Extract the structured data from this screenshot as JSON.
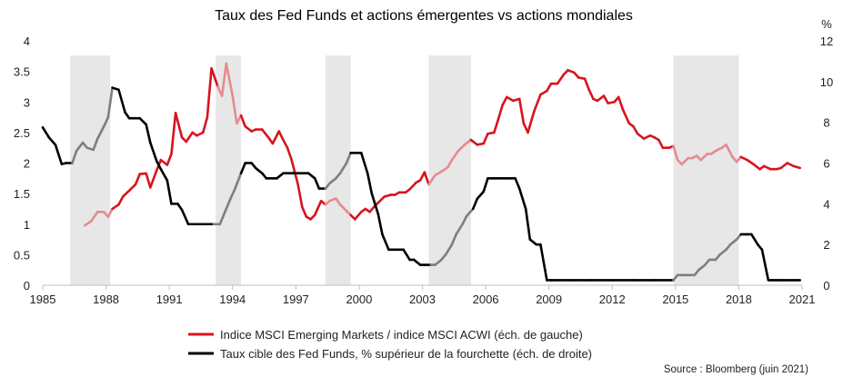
{
  "chart_data": {
    "type": "line",
    "title": "Taux des Fed Funds et actions émergentes vs actions mondiales",
    "source": "Source : Bloomberg (juin 2021)",
    "x_axis": {
      "range": [
        1985,
        2021
      ],
      "ticks": [
        1985,
        1988,
        1991,
        1994,
        1997,
        2000,
        2003,
        2006,
        2009,
        2012,
        2015,
        2018,
        2021
      ]
    },
    "y_left": {
      "label": "",
      "range": [
        0,
        4
      ],
      "ticks": [
        "0",
        "0.5",
        "1",
        "1.5",
        "2",
        "2.5",
        "3",
        "3.5",
        "4"
      ]
    },
    "y_right": {
      "label": "%",
      "range": [
        0,
        12
      ],
      "ticks": [
        "0",
        "2",
        "4",
        "6",
        "8",
        "10",
        "12"
      ]
    },
    "recession_bands": [
      [
        1986.3,
        1988.2
      ],
      [
        1993.2,
        1994.4
      ],
      [
        1998.4,
        1999.6
      ],
      [
        2003.3,
        2005.3
      ],
      [
        2014.9,
        2018.0
      ]
    ],
    "series": [
      {
        "name": "Indice MSCI Emerging Markets / indice MSCI ACWI (éch. de gauche)",
        "axis": "left",
        "color": "#d7141e",
        "highlight_color": "#e58b91",
        "points": [
          [
            1987.0,
            0.98
          ],
          [
            1987.3,
            1.05
          ],
          [
            1987.6,
            1.2
          ],
          [
            1987.9,
            1.2
          ],
          [
            1988.1,
            1.12
          ],
          [
            1988.3,
            1.25
          ],
          [
            1988.6,
            1.32
          ],
          [
            1988.8,
            1.45
          ],
          [
            1989.1,
            1.55
          ],
          [
            1989.4,
            1.65
          ],
          [
            1989.6,
            1.82
          ],
          [
            1989.9,
            1.83
          ],
          [
            1990.1,
            1.6
          ],
          [
            1990.4,
            1.88
          ],
          [
            1990.6,
            2.05
          ],
          [
            1990.9,
            1.97
          ],
          [
            1991.1,
            2.15
          ],
          [
            1991.3,
            2.82
          ],
          [
            1991.6,
            2.42
          ],
          [
            1991.8,
            2.35
          ],
          [
            1992.1,
            2.5
          ],
          [
            1992.3,
            2.45
          ],
          [
            1992.6,
            2.5
          ],
          [
            1992.8,
            2.75
          ],
          [
            1993.0,
            3.55
          ],
          [
            1993.3,
            3.25
          ],
          [
            1993.5,
            3.1
          ],
          [
            1993.7,
            3.63
          ],
          [
            1994.0,
            3.1
          ],
          [
            1994.2,
            2.65
          ],
          [
            1994.4,
            2.78
          ],
          [
            1994.6,
            2.6
          ],
          [
            1994.9,
            2.52
          ],
          [
            1995.1,
            2.55
          ],
          [
            1995.4,
            2.55
          ],
          [
            1995.7,
            2.42
          ],
          [
            1995.9,
            2.32
          ],
          [
            1996.2,
            2.52
          ],
          [
            1996.4,
            2.38
          ],
          [
            1996.6,
            2.25
          ],
          [
            1996.8,
            2.05
          ],
          [
            1997.1,
            1.65
          ],
          [
            1997.3,
            1.28
          ],
          [
            1997.5,
            1.12
          ],
          [
            1997.7,
            1.08
          ],
          [
            1997.9,
            1.15
          ],
          [
            1998.2,
            1.38
          ],
          [
            1998.4,
            1.32
          ],
          [
            1998.6,
            1.38
          ],
          [
            1998.9,
            1.42
          ],
          [
            1999.1,
            1.32
          ],
          [
            1999.3,
            1.25
          ],
          [
            1999.6,
            1.15
          ],
          [
            1999.8,
            1.08
          ],
          [
            2000.1,
            1.2
          ],
          [
            2000.3,
            1.25
          ],
          [
            2000.5,
            1.2
          ],
          [
            2000.7,
            1.28
          ],
          [
            2000.9,
            1.35
          ],
          [
            2001.2,
            1.45
          ],
          [
            2001.5,
            1.48
          ],
          [
            2001.7,
            1.48
          ],
          [
            2001.9,
            1.52
          ],
          [
            2002.2,
            1.52
          ],
          [
            2002.4,
            1.57
          ],
          [
            2002.7,
            1.68
          ],
          [
            2002.9,
            1.72
          ],
          [
            2003.1,
            1.85
          ],
          [
            2003.3,
            1.65
          ],
          [
            2003.6,
            1.8
          ],
          [
            2003.9,
            1.86
          ],
          [
            2004.2,
            1.93
          ],
          [
            2004.4,
            2.05
          ],
          [
            2004.7,
            2.2
          ],
          [
            2005.0,
            2.3
          ],
          [
            2005.3,
            2.38
          ],
          [
            2005.6,
            2.3
          ],
          [
            2005.9,
            2.32
          ],
          [
            2006.1,
            2.48
          ],
          [
            2006.4,
            2.5
          ],
          [
            2006.6,
            2.72
          ],
          [
            2006.8,
            2.95
          ],
          [
            2007.0,
            3.08
          ],
          [
            2007.3,
            3.02
          ],
          [
            2007.6,
            3.05
          ],
          [
            2007.8,
            2.65
          ],
          [
            2008.0,
            2.5
          ],
          [
            2008.3,
            2.85
          ],
          [
            2008.6,
            3.12
          ],
          [
            2008.9,
            3.18
          ],
          [
            2009.1,
            3.3
          ],
          [
            2009.4,
            3.3
          ],
          [
            2009.7,
            3.45
          ],
          [
            2009.9,
            3.52
          ],
          [
            2010.2,
            3.48
          ],
          [
            2010.4,
            3.4
          ],
          [
            2010.7,
            3.38
          ],
          [
            2010.9,
            3.2
          ],
          [
            2011.1,
            3.05
          ],
          [
            2011.3,
            3.02
          ],
          [
            2011.6,
            3.1
          ],
          [
            2011.8,
            2.98
          ],
          [
            2012.1,
            3.0
          ],
          [
            2012.3,
            3.08
          ],
          [
            2012.5,
            2.88
          ],
          [
            2012.8,
            2.65
          ],
          [
            2013.0,
            2.6
          ],
          [
            2013.2,
            2.48
          ],
          [
            2013.5,
            2.4
          ],
          [
            2013.8,
            2.45
          ],
          [
            2014.0,
            2.42
          ],
          [
            2014.2,
            2.38
          ],
          [
            2014.4,
            2.25
          ],
          [
            2014.7,
            2.25
          ],
          [
            2014.9,
            2.28
          ],
          [
            2015.1,
            2.05
          ],
          [
            2015.3,
            1.98
          ],
          [
            2015.6,
            2.08
          ],
          [
            2015.8,
            2.08
          ],
          [
            2016.0,
            2.12
          ],
          [
            2016.2,
            2.05
          ],
          [
            2016.5,
            2.15
          ],
          [
            2016.7,
            2.15
          ],
          [
            2016.9,
            2.2
          ],
          [
            2017.2,
            2.25
          ],
          [
            2017.4,
            2.3
          ],
          [
            2017.7,
            2.1
          ],
          [
            2017.9,
            2.02
          ],
          [
            2018.1,
            2.1
          ],
          [
            2018.4,
            2.05
          ],
          [
            2018.7,
            1.98
          ],
          [
            2019.0,
            1.9
          ],
          [
            2019.2,
            1.95
          ],
          [
            2019.5,
            1.9
          ],
          [
            2019.8,
            1.9
          ],
          [
            2020.0,
            1.92
          ],
          [
            2020.3,
            2.0
          ],
          [
            2020.6,
            1.95
          ],
          [
            2020.9,
            1.92
          ]
        ]
      },
      {
        "name": "Taux cible des Fed Funds, % supérieur de la fourchette (éch. de droite)",
        "axis": "right",
        "color": "#000000",
        "highlight_color": "#7f7f7f",
        "points": [
          [
            1985.0,
            7.75
          ],
          [
            1985.3,
            7.25
          ],
          [
            1985.6,
            6.9
          ],
          [
            1985.9,
            5.95
          ],
          [
            1986.1,
            6.0
          ],
          [
            1986.4,
            6.0
          ],
          [
            1986.6,
            6.6
          ],
          [
            1986.9,
            7.0
          ],
          [
            1987.1,
            6.75
          ],
          [
            1987.4,
            6.65
          ],
          [
            1987.6,
            7.2
          ],
          [
            1987.9,
            7.8
          ],
          [
            1988.1,
            8.25
          ],
          [
            1988.3,
            9.7
          ],
          [
            1988.6,
            9.6
          ],
          [
            1988.9,
            8.5
          ],
          [
            1989.1,
            8.2
          ],
          [
            1989.4,
            8.2
          ],
          [
            1989.6,
            8.2
          ],
          [
            1989.9,
            7.9
          ],
          [
            1990.1,
            7.0
          ],
          [
            1990.4,
            6.1
          ],
          [
            1990.6,
            5.7
          ],
          [
            1990.9,
            5.15
          ],
          [
            1991.1,
            4.0
          ],
          [
            1991.4,
            4.0
          ],
          [
            1991.6,
            3.7
          ],
          [
            1991.9,
            3.0
          ],
          [
            1992.1,
            3.0
          ],
          [
            1992.4,
            3.0
          ],
          [
            1992.6,
            3.0
          ],
          [
            1992.9,
            3.0
          ],
          [
            1993.1,
            3.0
          ],
          [
            1993.4,
            3.0
          ],
          [
            1993.6,
            3.5
          ],
          [
            1993.9,
            4.25
          ],
          [
            1994.1,
            4.7
          ],
          [
            1994.4,
            5.5
          ],
          [
            1994.6,
            6.0
          ],
          [
            1994.9,
            6.0
          ],
          [
            1995.1,
            5.75
          ],
          [
            1995.4,
            5.5
          ],
          [
            1995.6,
            5.25
          ],
          [
            1995.9,
            5.25
          ],
          [
            1996.1,
            5.25
          ],
          [
            1996.4,
            5.5
          ],
          [
            1996.6,
            5.5
          ],
          [
            1996.9,
            5.5
          ],
          [
            1997.1,
            5.5
          ],
          [
            1997.4,
            5.5
          ],
          [
            1997.6,
            5.5
          ],
          [
            1997.9,
            5.25
          ],
          [
            1998.1,
            4.75
          ],
          [
            1998.4,
            4.75
          ],
          [
            1998.6,
            5.0
          ],
          [
            1998.9,
            5.25
          ],
          [
            1999.1,
            5.5
          ],
          [
            1999.4,
            6.0
          ],
          [
            1999.6,
            6.5
          ],
          [
            1999.9,
            6.5
          ],
          [
            2000.1,
            6.5
          ],
          [
            2000.4,
            5.5
          ],
          [
            2000.6,
            4.5
          ],
          [
            2000.9,
            3.5
          ],
          [
            2001.1,
            2.5
          ],
          [
            2001.4,
            1.75
          ],
          [
            2001.6,
            1.75
          ],
          [
            2001.9,
            1.75
          ],
          [
            2002.1,
            1.75
          ],
          [
            2002.4,
            1.25
          ],
          [
            2002.6,
            1.25
          ],
          [
            2002.9,
            1.0
          ],
          [
            2003.1,
            1.0
          ],
          [
            2003.4,
            1.0
          ],
          [
            2003.6,
            1.0
          ],
          [
            2003.9,
            1.25
          ],
          [
            2004.1,
            1.5
          ],
          [
            2004.4,
            2.0
          ],
          [
            2004.6,
            2.5
          ],
          [
            2004.9,
            3.0
          ],
          [
            2005.1,
            3.4
          ],
          [
            2005.4,
            3.75
          ],
          [
            2005.6,
            4.25
          ],
          [
            2005.9,
            4.6
          ],
          [
            2006.1,
            5.25
          ],
          [
            2006.4,
            5.25
          ],
          [
            2006.6,
            5.25
          ],
          [
            2006.9,
            5.25
          ],
          [
            2007.1,
            5.25
          ],
          [
            2007.4,
            5.25
          ],
          [
            2007.6,
            4.75
          ],
          [
            2007.9,
            3.75
          ],
          [
            2008.1,
            2.25
          ],
          [
            2008.4,
            2.0
          ],
          [
            2008.6,
            2.0
          ],
          [
            2008.9,
            0.25
          ],
          [
            2009.1,
            0.25
          ],
          [
            2009.4,
            0.25
          ],
          [
            2010.0,
            0.25
          ],
          [
            2011.0,
            0.25
          ],
          [
            2012.0,
            0.25
          ],
          [
            2013.0,
            0.25
          ],
          [
            2014.0,
            0.25
          ],
          [
            2014.9,
            0.25
          ],
          [
            2015.1,
            0.5
          ],
          [
            2015.4,
            0.5
          ],
          [
            2015.6,
            0.5
          ],
          [
            2015.9,
            0.5
          ],
          [
            2016.1,
            0.75
          ],
          [
            2016.4,
            1.0
          ],
          [
            2016.6,
            1.25
          ],
          [
            2016.9,
            1.25
          ],
          [
            2017.1,
            1.5
          ],
          [
            2017.4,
            1.75
          ],
          [
            2017.6,
            2.0
          ],
          [
            2017.9,
            2.25
          ],
          [
            2018.1,
            2.5
          ],
          [
            2018.4,
            2.5
          ],
          [
            2018.6,
            2.5
          ],
          [
            2018.9,
            2.0
          ],
          [
            2019.1,
            1.75
          ],
          [
            2019.4,
            0.25
          ],
          [
            2019.6,
            0.25
          ],
          [
            2019.9,
            0.25
          ],
          [
            2020.1,
            0.25
          ],
          [
            2020.4,
            0.25
          ],
          [
            2020.6,
            0.25
          ],
          [
            2020.9,
            0.25
          ]
        ]
      }
    ]
  }
}
